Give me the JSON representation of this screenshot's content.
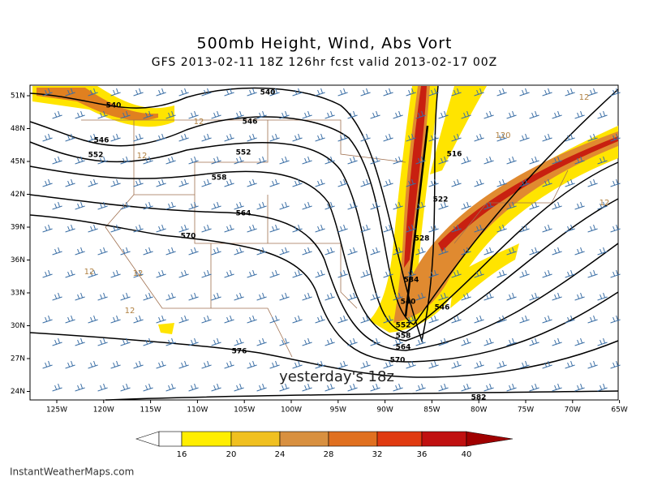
{
  "header": {
    "title": "500mb Height, Wind, Abs Vort",
    "subtitle": "GFS 2013-02-11 18Z 126hr fcst valid 2013-02-17 00Z"
  },
  "longitude_labels": [
    "125W",
    "120W",
    "115W",
    "110W",
    "105W",
    "100W",
    "95W",
    "90W",
    "85W",
    "80W",
    "75W",
    "70W",
    "65W"
  ],
  "latitude_labels": [
    "51N",
    "48N",
    "45N",
    "42N",
    "39N",
    "36N",
    "33N",
    "30N",
    "27N",
    "24N"
  ],
  "contour_labels": [
    "540",
    "540",
    "546",
    "546",
    "552",
    "552",
    "558",
    "564",
    "570",
    "576",
    "516",
    "522",
    "528",
    "534",
    "540",
    "546",
    "552",
    "558",
    "564",
    "570",
    "582"
  ],
  "vort_labels": [
    "12",
    "12",
    "12",
    "12",
    "12",
    "12",
    "120",
    "12"
  ],
  "annotation": "yesterday's 18z",
  "colorbar": {
    "labels": [
      "16",
      "20",
      "24",
      "28",
      "32",
      "36",
      "40"
    ]
  },
  "footer": {
    "credit": "InstantWeatherMaps.com"
  }
}
